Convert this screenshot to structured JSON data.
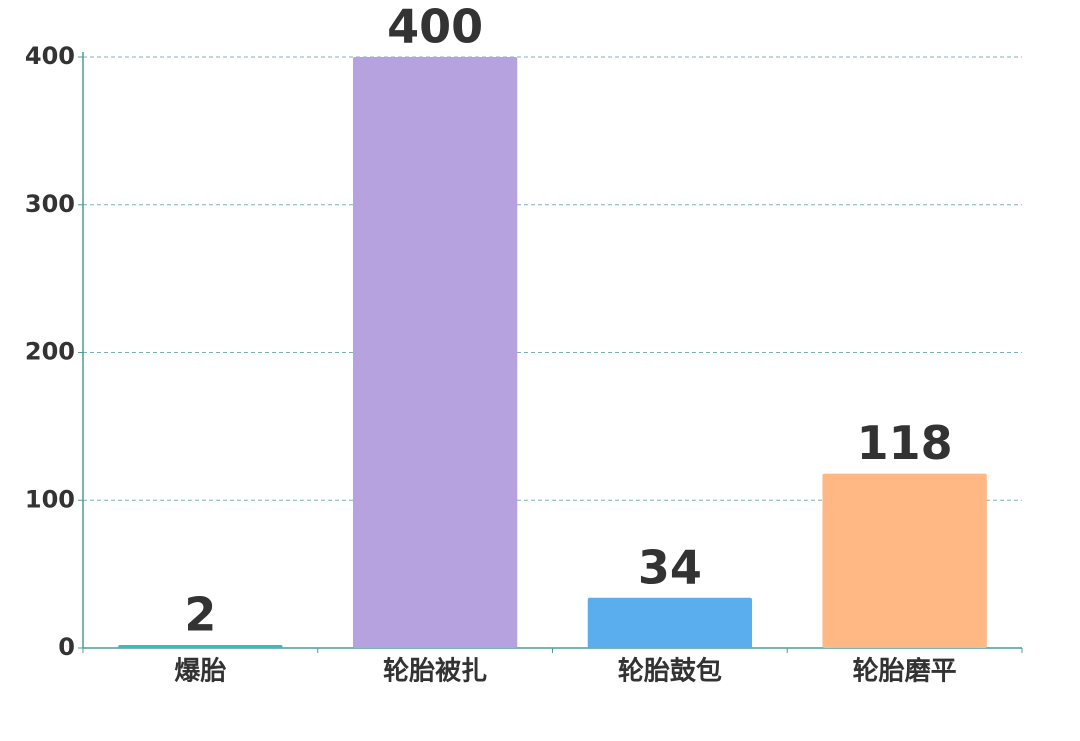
{
  "chart_data": {
    "type": "bar",
    "categories": [
      "爆胎",
      "轮胎被扎",
      "轮胎鼓包",
      "轮胎磨平"
    ],
    "values": [
      2,
      400,
      34,
      118
    ],
    "colors": [
      "#2ec0c4",
      "#b5a2de",
      "#5aaeee",
      "#ffb883"
    ],
    "ylim": [
      0,
      400
    ],
    "yticks": [
      0,
      100,
      200,
      300,
      400
    ],
    "grid": true
  }
}
